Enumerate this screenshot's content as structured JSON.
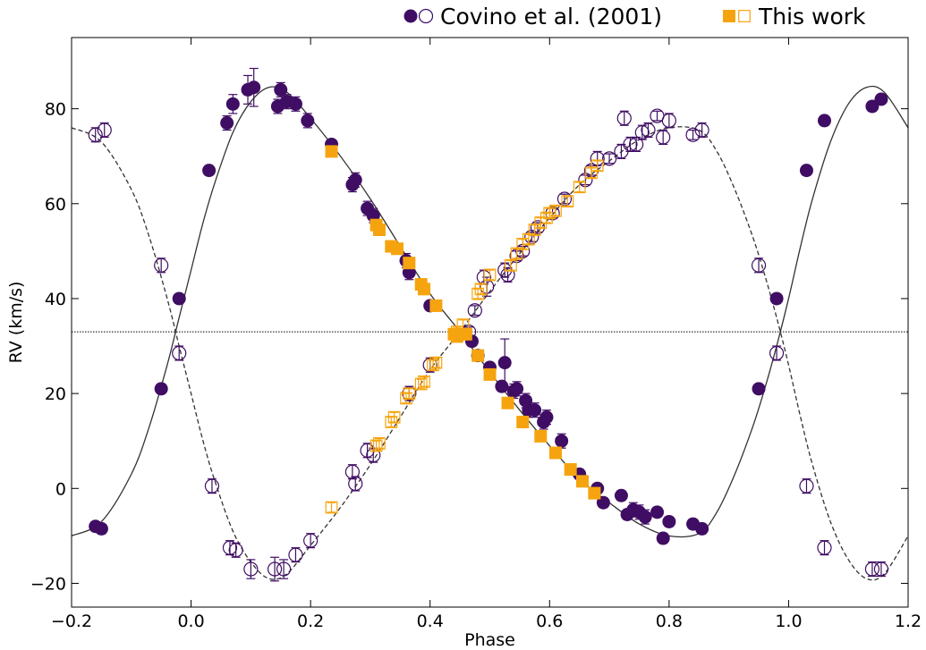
{
  "chart_data": {
    "type": "scatter",
    "xlabel": "Phase",
    "ylabel": "RV (km/s)",
    "xlim": [
      -0.2,
      1.2
    ],
    "ylim": [
      -25,
      95
    ],
    "xticks": [
      -0.2,
      0.0,
      0.2,
      0.4,
      0.6,
      0.8,
      1.0,
      1.2
    ],
    "xtick_labels": [
      "−0.2",
      "0.0",
      "0.2",
      "0.4",
      "0.6",
      "0.8",
      "1.0",
      "1.2"
    ],
    "yticks": [
      -20,
      0,
      20,
      40,
      60,
      80
    ],
    "ytick_labels": [
      "−20",
      "0",
      "20",
      "40",
      "60",
      "80"
    ],
    "grid": false,
    "legend_position": "top",
    "systemic_velocity": 33,
    "colors": {
      "covino": "#3f0d63",
      "this_work": "#f5a40f",
      "model": "#333333"
    },
    "legend": [
      {
        "label": "Covino et al. (2001)",
        "color": "#3f0d63",
        "markers": [
          "filled-circle",
          "open-circle"
        ]
      },
      {
        "label": "This work",
        "color": "#f5a40f",
        "markers": [
          "filled-square",
          "open-square"
        ]
      }
    ],
    "series": [
      {
        "name": "Covino et al. (2001)",
        "component": "primary",
        "marker": "filled-circle",
        "x": [
          -0.16,
          -0.15,
          -0.05,
          -0.02,
          0.03,
          0.06,
          0.07,
          0.095,
          0.105,
          0.145,
          0.15,
          0.16,
          0.175,
          0.195,
          0.235,
          0.27,
          0.275,
          0.295,
          0.305,
          0.36,
          0.365,
          0.4,
          0.47,
          0.48,
          0.5,
          0.52,
          0.525,
          0.54,
          0.545,
          0.56,
          0.565,
          0.575,
          0.59,
          0.595,
          0.62,
          0.65,
          0.68,
          0.69,
          0.72,
          0.73,
          0.74,
          0.75,
          0.76,
          0.78,
          0.79,
          0.8,
          0.84,
          0.855,
          0.95,
          0.98,
          1.03,
          1.06,
          1.14,
          1.155
        ],
        "y": [
          -8,
          -8.5,
          21,
          40,
          67,
          77,
          81,
          84,
          84.5,
          80.5,
          84,
          81.5,
          81,
          77.5,
          72.5,
          64,
          65,
          59,
          57.5,
          48,
          45.5,
          38.5,
          31,
          28,
          25.5,
          21.5,
          26.5,
          20.5,
          21,
          18.5,
          16.5,
          16.5,
          14,
          15,
          10,
          3,
          0,
          -3,
          -1.5,
          -5.5,
          -4.5,
          -5,
          -6,
          -5,
          -10.5,
          -7,
          -7.5,
          -8.5,
          21,
          40,
          67,
          77.5,
          80.5,
          82
        ],
        "yerr": [
          1,
          1,
          1,
          1,
          1,
          1.5,
          2,
          3,
          4,
          1.5,
          1.5,
          1.5,
          1.5,
          1.5,
          1,
          1.5,
          1.5,
          1.5,
          1.5,
          1.5,
          1.5,
          1,
          1,
          1,
          1,
          1,
          5,
          1.5,
          1.5,
          1.5,
          1.5,
          1.5,
          1.5,
          1.5,
          1.5,
          1,
          1,
          1,
          1,
          1,
          1.5,
          1.5,
          1.5,
          1,
          1,
          1,
          1,
          1,
          1,
          1,
          1,
          1,
          1,
          1
        ]
      },
      {
        "name": "Covino et al. (2001)",
        "component": "secondary",
        "marker": "open-circle",
        "x": [
          -0.16,
          -0.145,
          -0.05,
          -0.02,
          0.035,
          0.065,
          0.075,
          0.1,
          0.14,
          0.155,
          0.175,
          0.2,
          0.27,
          0.275,
          0.295,
          0.305,
          0.365,
          0.4,
          0.465,
          0.475,
          0.49,
          0.495,
          0.525,
          0.53,
          0.545,
          0.555,
          0.57,
          0.58,
          0.605,
          0.625,
          0.66,
          0.67,
          0.68,
          0.7,
          0.72,
          0.725,
          0.735,
          0.745,
          0.755,
          0.765,
          0.78,
          0.79,
          0.8,
          0.84,
          0.855,
          0.95,
          0.98,
          1.03,
          1.06,
          1.14,
          1.155
        ],
        "y": [
          74.5,
          75.5,
          47,
          28.5,
          0.5,
          -12.5,
          -13,
          -17,
          -17,
          -17,
          -14,
          -11,
          3.5,
          1,
          8,
          7,
          20,
          26,
          33,
          37.5,
          44.5,
          42.5,
          46,
          45,
          49,
          50,
          53,
          55,
          58,
          61,
          65,
          67,
          69.5,
          69.5,
          71,
          78,
          72.5,
          72.5,
          75,
          75.5,
          78.5,
          74,
          77.5,
          74.5,
          75.5,
          47,
          28.5,
          0.5,
          -12.5,
          -17,
          -17
        ],
        "yerr": [
          1.5,
          1.5,
          1.5,
          1.5,
          1.5,
          1.5,
          1.5,
          2,
          2.5,
          2,
          1.5,
          1.5,
          1.5,
          1.5,
          1.5,
          1.5,
          1.5,
          1.5,
          1,
          1,
          1.5,
          2,
          1.5,
          1.5,
          1,
          1,
          1,
          1,
          1,
          1,
          1,
          1,
          1.5,
          1,
          1.5,
          1.5,
          1.5,
          1.5,
          1.5,
          1.5,
          1,
          1.5,
          1.5,
          1,
          1.5,
          1.5,
          1.5,
          1.5,
          1.5,
          1.5,
          1.5
        ]
      },
      {
        "name": "This work",
        "component": "primary",
        "marker": "filled-square",
        "x": [
          0.235,
          0.31,
          0.315,
          0.335,
          0.345,
          0.365,
          0.385,
          0.39,
          0.41,
          0.44,
          0.445,
          0.455,
          0.46,
          0.48,
          0.5,
          0.53,
          0.555,
          0.585,
          0.61,
          0.635,
          0.655,
          0.675
        ],
        "y": [
          71,
          55.5,
          54.5,
          51,
          50.5,
          47.5,
          43,
          42,
          38.5,
          32.5,
          32,
          32.5,
          32.5,
          28,
          24,
          18,
          14,
          11,
          7.5,
          4,
          1.5,
          -1
        ],
        "yerr": [
          1,
          1,
          1,
          1,
          1,
          1,
          1,
          1,
          1,
          1,
          1,
          1,
          1,
          1,
          1,
          1,
          1,
          1,
          1,
          1,
          1,
          1
        ]
      },
      {
        "name": "This work",
        "component": "secondary",
        "marker": "open-square",
        "x": [
          0.235,
          0.31,
          0.315,
          0.335,
          0.34,
          0.36,
          0.365,
          0.385,
          0.39,
          0.405,
          0.41,
          0.445,
          0.455,
          0.48,
          0.485,
          0.5,
          0.535,
          0.545,
          0.555,
          0.565,
          0.575,
          0.585,
          0.595,
          0.6,
          0.61,
          0.63,
          0.65,
          0.67,
          0.68
        ],
        "y": [
          -4,
          9,
          9.5,
          14,
          15,
          19,
          20,
          22,
          22.5,
          26,
          26.5,
          33,
          34.5,
          41,
          42,
          45,
          47,
          49.5,
          51.5,
          52.5,
          54.5,
          56,
          57,
          58,
          58.5,
          60.5,
          63.5,
          66.5,
          68
        ],
        "yerr": [
          1,
          1,
          1,
          1,
          1,
          1,
          1,
          1,
          1,
          1,
          1,
          1,
          1,
          1,
          1,
          1,
          1,
          1,
          1,
          1,
          1,
          1,
          1,
          1,
          1,
          1,
          1,
          1,
          1
        ]
      }
    ],
    "model_curves": [
      {
        "component": "primary",
        "style": "solid",
        "x": [
          -0.2,
          -0.15,
          -0.1,
          -0.07,
          -0.04,
          -0.02,
          0.0,
          0.02,
          0.04,
          0.07,
          0.1,
          0.13,
          0.16,
          0.2,
          0.25,
          0.3,
          0.35,
          0.4,
          0.45,
          0.5,
          0.55,
          0.6,
          0.65,
          0.7,
          0.75,
          0.8,
          0.85,
          0.88,
          0.91,
          0.94,
          0.96,
          0.98,
          1.0,
          1.02,
          1.04,
          1.07,
          1.1,
          1.13,
          1.16,
          1.2
        ],
        "y": [
          -10,
          -7,
          3,
          13,
          26,
          36,
          46,
          56,
          64.5,
          75,
          81.5,
          84.5,
          83.5,
          78,
          70,
          61,
          51,
          41,
          33,
          24.5,
          16.5,
          9,
          2,
          -3,
          -7.5,
          -10,
          -9.5,
          -5,
          3,
          13,
          21,
          30,
          40,
          51,
          61,
          73,
          81,
          84.5,
          83.5,
          76
        ]
      },
      {
        "component": "secondary",
        "style": "dashed",
        "x": [
          -0.2,
          -0.15,
          -0.1,
          -0.07,
          -0.04,
          -0.02,
          0.0,
          0.02,
          0.04,
          0.07,
          0.1,
          0.13,
          0.16,
          0.2,
          0.25,
          0.3,
          0.35,
          0.4,
          0.45,
          0.5,
          0.55,
          0.6,
          0.65,
          0.7,
          0.75,
          0.8,
          0.85,
          0.88,
          0.91,
          0.94,
          0.96,
          0.98,
          1.0,
          1.02,
          1.04,
          1.07,
          1.1,
          1.13,
          1.16,
          1.2
        ],
        "y": [
          76,
          73,
          63,
          53,
          40,
          30,
          20,
          10,
          1.5,
          -9,
          -15.5,
          -19,
          -18,
          -12,
          -4,
          5,
          15,
          25,
          33,
          41.5,
          49.5,
          57,
          64,
          69,
          73.5,
          76,
          75.5,
          71,
          63,
          53,
          45,
          36,
          26,
          15,
          5,
          -7,
          -15,
          -19,
          -18,
          -10
        ]
      }
    ]
  }
}
